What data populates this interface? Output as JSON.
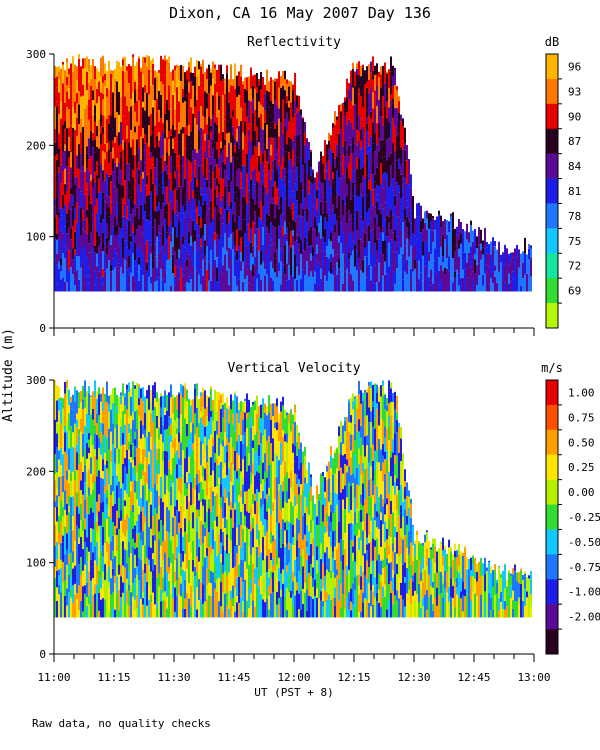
{
  "title": "Dixon, CA 16 May 2007  Day 136",
  "footnote": "Raw data, no quality checks",
  "shared_ylabel": "Altitude (m)",
  "chart_data": [
    {
      "type": "heatmap",
      "title": "Reflectivity",
      "colorbar_unit": "dB",
      "colorbar_ticks": [
        "96",
        "93",
        "90",
        "87",
        "84",
        "81",
        "78",
        "75",
        "72",
        "69"
      ],
      "colorbar_colors": [
        "#ffb400",
        "#ff7800",
        "#e60000",
        "#2a0020",
        "#5a0a96",
        "#1e1ee6",
        "#1e78ff",
        "#14c8ff",
        "#14e6a0",
        "#32dc32",
        "#b4f50a"
      ],
      "xlabel": "",
      "ylabel": "",
      "ylim": [
        0,
        300
      ],
      "yticks": [
        "0",
        "100",
        "200",
        "300"
      ],
      "xlim": [
        "11:00",
        "13:00"
      ],
      "xticks": [
        "11:00",
        "11:15",
        "11:30",
        "11:45",
        "12:00",
        "12:15",
        "12:30",
        "12:45",
        "13:00"
      ],
      "data_altitude_range_m": [
        40,
        300
      ],
      "cloud_top_profile": [
        {
          "time": "11:00",
          "top_m": 300
        },
        {
          "time": "11:30",
          "top_m": 300
        },
        {
          "time": "12:00",
          "top_m": 280
        },
        {
          "time": "12:05",
          "top_m": 180
        },
        {
          "time": "12:15",
          "top_m": 300
        },
        {
          "time": "12:25",
          "top_m": 300
        },
        {
          "time": "12:30",
          "top_m": 140
        },
        {
          "time": "12:45",
          "top_m": 120
        },
        {
          "time": "12:50",
          "top_m": 100
        },
        {
          "time": "13:00",
          "top_m": 100
        }
      ]
    },
    {
      "type": "heatmap",
      "title": "Vertical Velocity",
      "colorbar_unit": "m/s",
      "colorbar_ticks": [
        "1.00",
        "0.75",
        "0.50",
        "0.25",
        "0.00",
        "-0.25",
        "-0.50",
        "-0.75",
        "-1.00",
        "-2.00"
      ],
      "colorbar_colors": [
        "#e60000",
        "#ff5000",
        "#ffa000",
        "#ffe600",
        "#b4f000",
        "#32dc32",
        "#14c8ff",
        "#1e78ff",
        "#1e1ee6",
        "#5a0a96",
        "#2a0020"
      ],
      "xlabel": "UT  (PST + 8)",
      "ylabel": "",
      "ylim": [
        0,
        300
      ],
      "yticks": [
        "0",
        "100",
        "200",
        "300"
      ],
      "xlim": [
        "11:00",
        "13:00"
      ],
      "xticks": [
        "11:00",
        "11:15",
        "11:30",
        "11:45",
        "12:00",
        "12:15",
        "12:30",
        "12:45",
        "13:00"
      ],
      "data_altitude_range_m": [
        40,
        300
      ],
      "cloud_top_profile": [
        {
          "time": "11:00",
          "top_m": 300
        },
        {
          "time": "11:30",
          "top_m": 300
        },
        {
          "time": "12:00",
          "top_m": 280
        },
        {
          "time": "12:05",
          "top_m": 180
        },
        {
          "time": "12:15",
          "top_m": 300
        },
        {
          "time": "12:25",
          "top_m": 300
        },
        {
          "time": "12:30",
          "top_m": 140
        },
        {
          "time": "12:45",
          "top_m": 120
        },
        {
          "time": "12:50",
          "top_m": 100
        },
        {
          "time": "13:00",
          "top_m": 100
        }
      ]
    }
  ]
}
